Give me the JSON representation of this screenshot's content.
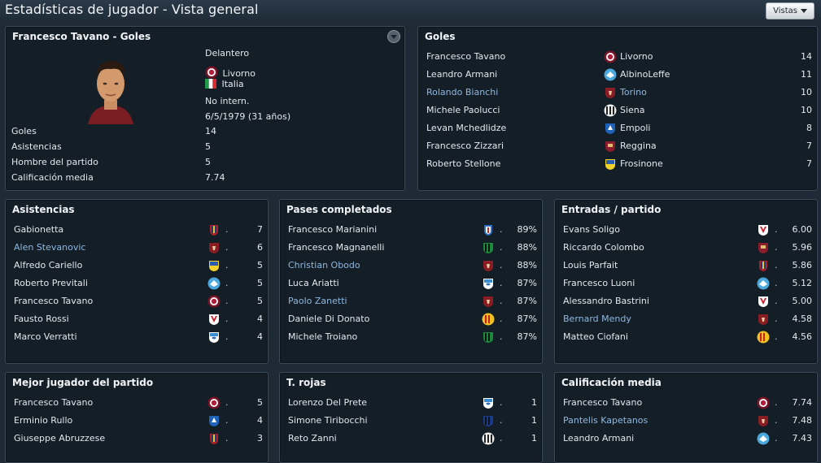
{
  "page": {
    "title": "Estadísticas de jugador - Vista general",
    "views_label": "Vistas"
  },
  "colors": {
    "background": "#1e2a36",
    "panel": "#141e27",
    "link": "#8fb8e0"
  },
  "player": {
    "header": "Francesco Tavano - Goles",
    "position": "Delantero",
    "club": "Livorno",
    "nation": "Italia",
    "intl": "No intern.",
    "dob": "6/5/1979 (31 años)",
    "stats": [
      {
        "label": "Goles",
        "value": "14"
      },
      {
        "label": "Asistencias",
        "value": "5"
      },
      {
        "label": "Hombre del partido",
        "value": "5"
      },
      {
        "label": "Calificación media",
        "value": "7.74"
      }
    ]
  },
  "goles": {
    "title": "Goles",
    "rows": [
      {
        "name": "Francesco Tavano",
        "club": "Livorno",
        "badge": "livorno",
        "value": "14",
        "hl": false
      },
      {
        "name": "Leandro Armani",
        "club": "AlbinoLeffe",
        "badge": "albinoleffe",
        "value": "11",
        "hl": false
      },
      {
        "name": "Rolando Bianchi",
        "club": "Torino",
        "badge": "torino",
        "value": "10",
        "hl": true
      },
      {
        "name": "Michele Paolucci",
        "club": "Siena",
        "badge": "siena",
        "value": "10",
        "hl": false
      },
      {
        "name": "Levan Mchedlidze",
        "club": "Empoli",
        "badge": "empoli",
        "value": "8",
        "hl": false
      },
      {
        "name": "Francesco Zizzari",
        "club": "Reggina",
        "badge": "reggina",
        "value": "7",
        "hl": false
      },
      {
        "name": "Roberto Stellone",
        "club": "Frosinone",
        "badge": "frosinone",
        "value": "7",
        "hl": false
      }
    ]
  },
  "asistencias": {
    "title": "Asistencias",
    "rows": [
      {
        "name": "Gabionetta",
        "badge": "crotone",
        "value": "7",
        "hl": false
      },
      {
        "name": "Alen Stevanovic",
        "badge": "torino",
        "value": "6",
        "hl": true
      },
      {
        "name": "Alfredo Cariello",
        "badge": "frosinone",
        "value": "5",
        "hl": false
      },
      {
        "name": "Roberto Previtali",
        "badge": "albinoleffe",
        "value": "5",
        "hl": false
      },
      {
        "name": "Francesco Tavano",
        "badge": "livorno",
        "value": "5",
        "hl": false
      },
      {
        "name": "Fausto Rossi",
        "badge": "vicenza",
        "value": "4",
        "hl": false
      },
      {
        "name": "Marco Verratti",
        "badge": "pescara",
        "value": "4",
        "hl": false
      }
    ]
  },
  "pases": {
    "title": "Pases completados",
    "rows": [
      {
        "name": "Francesco Marianini",
        "badge": "novara",
        "value": "89%",
        "hl": false
      },
      {
        "name": "Francesco Magnanelli",
        "badge": "sassuolo",
        "value": "88%",
        "hl": false
      },
      {
        "name": "Christian Obodo",
        "badge": "torino",
        "value": "88%",
        "hl": true
      },
      {
        "name": "Luca Ariatti",
        "badge": "pescara",
        "value": "87%",
        "hl": false
      },
      {
        "name": "Paolo Zanetti",
        "badge": "torino",
        "value": "87%",
        "hl": true
      },
      {
        "name": "Daniele Di Donato",
        "badge": "lecce",
        "value": "87%",
        "hl": false
      },
      {
        "name": "Michele Troiano",
        "badge": "sassuolo",
        "value": "87%",
        "hl": false
      }
    ]
  },
  "entradas": {
    "title": "Entradas / partido",
    "rows": [
      {
        "name": "Evans Soligo",
        "badge": "vicenza",
        "value": "6.00",
        "hl": false
      },
      {
        "name": "Riccardo Colombo",
        "badge": "reggina",
        "value": "5.96",
        "hl": false
      },
      {
        "name": "Louis Parfait",
        "badge": "crotone",
        "value": "5.86",
        "hl": false
      },
      {
        "name": "Francesco Luoni",
        "badge": "albinoleffe",
        "value": "5.12",
        "hl": false
      },
      {
        "name": "Alessandro Bastrini",
        "badge": "vicenza",
        "value": "5.00",
        "hl": false
      },
      {
        "name": "Bernard Mendy",
        "badge": "torino",
        "value": "4.58",
        "hl": true
      },
      {
        "name": "Matteo Ciofani",
        "badge": "lecce",
        "value": "4.56",
        "hl": false
      }
    ]
  },
  "mejor": {
    "title": "Mejor jugador del partido",
    "rows": [
      {
        "name": "Francesco Tavano",
        "badge": "livorno",
        "value": "5",
        "hl": false
      },
      {
        "name": "Erminio Rullo",
        "badge": "empoli",
        "value": "4",
        "hl": false
      },
      {
        "name": "Giuseppe Abruzzese",
        "badge": "crotone",
        "value": "3",
        "hl": false
      }
    ]
  },
  "rojas": {
    "title": "T. rojas",
    "rows": [
      {
        "name": "Lorenzo Del Prete",
        "badge": "pescara",
        "value": "1",
        "hl": false
      },
      {
        "name": "Simone Tiribocchi",
        "badge": "atalanta",
        "value": "1",
        "hl": false
      },
      {
        "name": "Reto Zanni",
        "badge": "siena",
        "value": "1",
        "hl": false
      }
    ]
  },
  "calif": {
    "title": "Calificación media",
    "rows": [
      {
        "name": "Francesco Tavano",
        "badge": "livorno",
        "value": "7.74",
        "hl": false
      },
      {
        "name": "Pantelis Kapetanos",
        "badge": "torino",
        "value": "7.48",
        "hl": true
      },
      {
        "name": "Leandro Armani",
        "badge": "albinoleffe",
        "value": "7.43",
        "hl": false
      }
    ]
  }
}
